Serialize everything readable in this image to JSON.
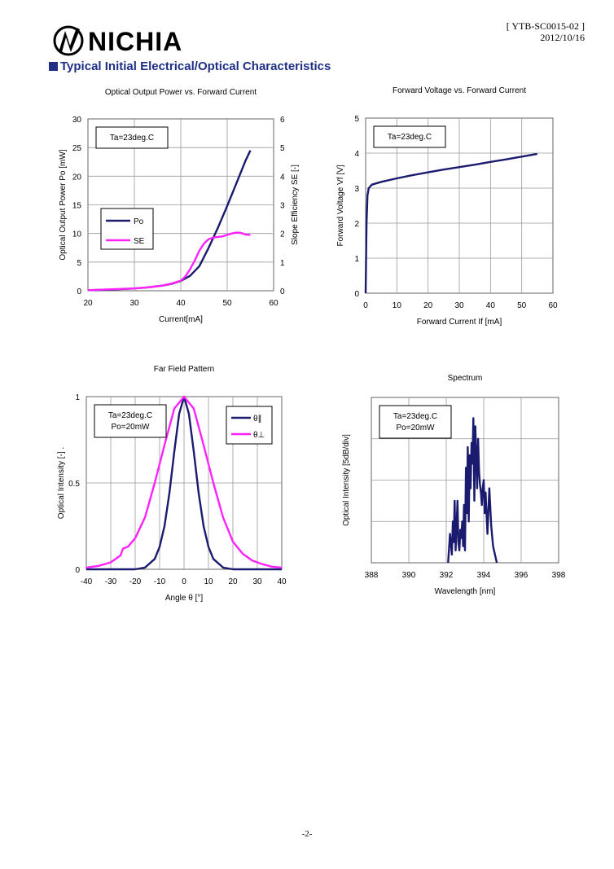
{
  "header": {
    "brand": "NICHIA",
    "doc_id": "[ YTB-SC0015-02 ]",
    "date": "2012/10/16",
    "section_title": "Typical Initial Electrical/Optical Characteristics"
  },
  "footer": {
    "page": "-2-"
  },
  "colors": {
    "navy": "#1a1a6e",
    "magenta": "#ff22ff",
    "heading": "#1f2f86",
    "grid": "#999999"
  },
  "chart_data": [
    {
      "id": "po_vs_if",
      "type": "line",
      "title": "Optical Output Power vs. Forward Current",
      "xlabel": "Current[mA]",
      "ylabel": "Optical Output Power Po [mW]",
      "y2label": "Slope Efficiency SE [-]",
      "xlim": [
        20,
        60
      ],
      "ylim": [
        0,
        30
      ],
      "y2lim": [
        0,
        6
      ],
      "xticks": [
        "20",
        "30",
        "40",
        "50",
        "60"
      ],
      "yticks": [
        "0",
        "5",
        "10",
        "15",
        "20",
        "25",
        "30"
      ],
      "y2ticks": [
        "0",
        "1",
        "2",
        "3",
        "4",
        "5",
        "6"
      ],
      "annotation": "Ta=23deg.C",
      "legend_position": "left-middle",
      "grid": true,
      "series": [
        {
          "name": "Po",
          "axis": "left",
          "color": "#1a1a6e",
          "x": [
            20,
            25,
            30,
            33,
            36,
            38,
            40,
            42,
            44,
            46,
            48,
            50,
            52,
            54,
            55
          ],
          "y": [
            0.1,
            0.2,
            0.4,
            0.6,
            0.9,
            1.2,
            1.7,
            2.6,
            4.3,
            7.5,
            11.0,
            14.8,
            18.8,
            22.8,
            24.5
          ]
        },
        {
          "name": "SE",
          "axis": "right",
          "color": "#ff22ff",
          "x": [
            20,
            25,
            30,
            33,
            36,
            38,
            40,
            41,
            42,
            43,
            44,
            45,
            46,
            47,
            48,
            49,
            50,
            51,
            52,
            53,
            54,
            55
          ],
          "y": [
            0.02,
            0.05,
            0.08,
            0.12,
            0.18,
            0.25,
            0.35,
            0.5,
            0.75,
            1.05,
            1.4,
            1.65,
            1.8,
            1.86,
            1.88,
            1.9,
            1.95,
            2.0,
            2.03,
            2.02,
            1.96,
            1.95
          ]
        }
      ]
    },
    {
      "id": "vf_vs_if",
      "type": "line",
      "title": "Forward Voltage vs. Forward Current",
      "xlabel": "Forward Current If [mA]",
      "ylabel": "Forward Voltage Vf [V]",
      "xlim": [
        0,
        60
      ],
      "ylim": [
        0,
        5
      ],
      "xticks": [
        "0",
        "10",
        "20",
        "30",
        "40",
        "50",
        "60"
      ],
      "yticks": [
        "0",
        "1",
        "2",
        "3",
        "4",
        "5"
      ],
      "annotation": "Ta=23deg.C",
      "grid": true,
      "series": [
        {
          "name": "",
          "color": "#1a1a6e",
          "x": [
            0,
            0.3,
            0.6,
            1,
            2,
            5,
            10,
            15,
            20,
            25,
            30,
            35,
            40,
            45,
            50,
            55
          ],
          "y": [
            0,
            2.0,
            2.8,
            3.0,
            3.1,
            3.18,
            3.28,
            3.37,
            3.45,
            3.53,
            3.6,
            3.67,
            3.75,
            3.82,
            3.9,
            3.98
          ]
        }
      ]
    },
    {
      "id": "far_field",
      "type": "line",
      "title": "Far Field Pattern",
      "xlabel": "Angle θ [°]",
      "ylabel": "Optical Intensity [-] .",
      "xlim": [
        -40,
        40
      ],
      "ylim": [
        0,
        1
      ],
      "xticks": [
        "-40",
        "-30",
        "-20",
        "-10",
        "0",
        "10",
        "20",
        "30",
        "40"
      ],
      "yticks": [
        "0",
        "0.5",
        "1"
      ],
      "annotation": [
        "Ta=23deg.C",
        "Po=20mW"
      ],
      "legend_position": "top-right",
      "grid": true,
      "series": [
        {
          "name": "θ∥",
          "color": "#1a1a6e",
          "x": [
            -40,
            -20,
            -16,
            -12,
            -10,
            -8,
            -6,
            -4,
            -2,
            0,
            2,
            4,
            6,
            8,
            10,
            12,
            16,
            20,
            40
          ],
          "y": [
            0,
            0,
            0.01,
            0.06,
            0.13,
            0.25,
            0.44,
            0.68,
            0.9,
            1.0,
            0.9,
            0.68,
            0.44,
            0.25,
            0.13,
            0.06,
            0.01,
            0,
            0
          ]
        },
        {
          "name": "θ⊥",
          "color": "#ff22ff",
          "x": [
            -40,
            -35,
            -30,
            -26,
            -25,
            -23,
            -20,
            -16,
            -12,
            -8,
            -4,
            0,
            4,
            8,
            12,
            16,
            20,
            24,
            28,
            32,
            36,
            40
          ],
          "y": [
            0.01,
            0.02,
            0.04,
            0.08,
            0.12,
            0.13,
            0.18,
            0.3,
            0.5,
            0.72,
            0.93,
            1.0,
            0.93,
            0.72,
            0.5,
            0.3,
            0.16,
            0.09,
            0.05,
            0.03,
            0.015,
            0.01
          ]
        }
      ]
    },
    {
      "id": "spectrum",
      "type": "line",
      "title": "Spectrum",
      "xlabel": "Wavelength [nm]",
      "ylabel": "Optical Intensity [5dB/div]",
      "xlim": [
        388,
        398
      ],
      "ylim": [
        0,
        4
      ],
      "xticks": [
        "388",
        "390",
        "392",
        "394",
        "396",
        "398"
      ],
      "yticks": [],
      "annotation": [
        "Ta=23deg.C",
        "Po=20mW"
      ],
      "grid": true,
      "series": [
        {
          "name": "",
          "color": "#1a1a6e",
          "x": [
            392.1,
            392.2,
            392.3,
            392.35,
            392.4,
            392.45,
            392.5,
            392.55,
            392.6,
            392.65,
            392.7,
            392.75,
            392.8,
            392.85,
            392.9,
            392.95,
            393.0,
            393.05,
            393.1,
            393.15,
            393.2,
            393.25,
            393.3,
            393.35,
            393.4,
            393.45,
            393.5,
            393.55,
            393.6,
            393.65,
            393.7,
            393.75,
            393.8,
            393.85,
            393.9,
            393.95,
            394.0,
            394.05,
            394.1,
            394.2,
            394.3,
            394.4,
            394.5,
            394.6,
            394.7
          ],
          "y": [
            0,
            0.7,
            0.2,
            1.0,
            0.5,
            1.5,
            0.3,
            0.9,
            1.5,
            0.5,
            0.3,
            0.8,
            0.6,
            1.0,
            0.4,
            1.4,
            0.3,
            2.3,
            1.2,
            2.8,
            1.0,
            2.6,
            1.8,
            2.9,
            2.4,
            3.5,
            1.5,
            3.3,
            2.6,
            1.8,
            3.0,
            2.2,
            1.9,
            1.7,
            1.4,
            1.8,
            2.0,
            1.2,
            1.7,
            0.7,
            1.8,
            0.9,
            0.4,
            0.2,
            0
          ]
        }
      ]
    }
  ]
}
